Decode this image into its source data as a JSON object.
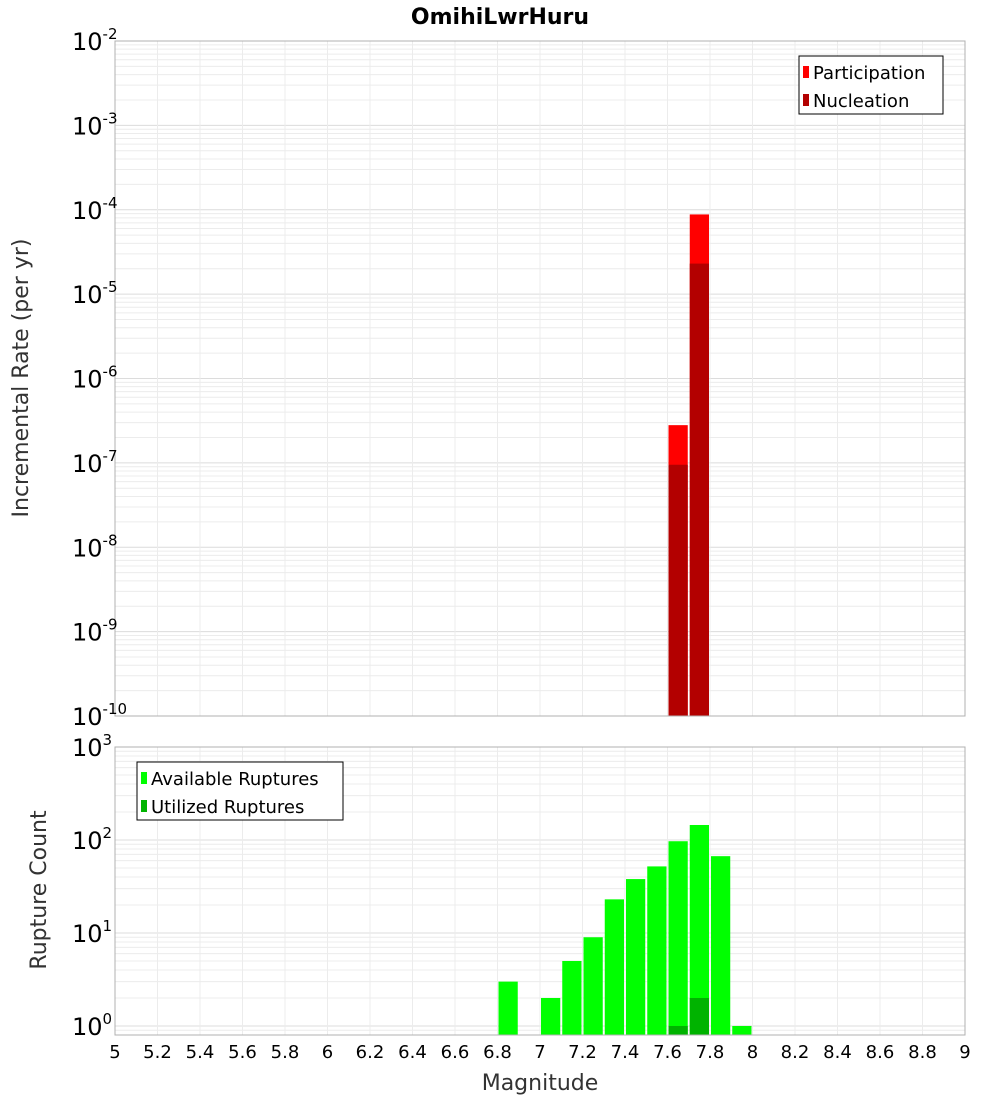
{
  "title": "OmihiLwrHuru",
  "chart_data": [
    {
      "type": "bar",
      "scale": "log",
      "ylabel": "Incremental Rate (per yr)",
      "ylim": [
        1e-10,
        0.01
      ],
      "yticks": [
        {
          "base": "10",
          "exp": "-10"
        },
        {
          "base": "10",
          "exp": "-9"
        },
        {
          "base": "10",
          "exp": "-8"
        },
        {
          "base": "10",
          "exp": "-7"
        },
        {
          "base": "10",
          "exp": "-6"
        },
        {
          "base": "10",
          "exp": "-5"
        },
        {
          "base": "10",
          "exp": "-4"
        },
        {
          "base": "10",
          "exp": "-3"
        },
        {
          "base": "10",
          "exp": "-2"
        }
      ],
      "legend_position": "top-right",
      "bin_width": 0.1,
      "series": [
        {
          "name": "Participation",
          "color": "#ff0000",
          "x": [
            7.65,
            7.75
          ],
          "values": [
            2.8e-07,
            8.8e-05
          ]
        },
        {
          "name": "Nucleation",
          "color": "#b30000",
          "x": [
            7.65,
            7.75
          ],
          "values": [
            9.5e-08,
            2.3e-05
          ]
        }
      ]
    },
    {
      "type": "bar",
      "scale": "log",
      "ylabel": "Rupture Count",
      "ylim": [
        0.8,
        1000
      ],
      "yticks": [
        {
          "base": "10",
          "exp": "0"
        },
        {
          "base": "10",
          "exp": "1"
        },
        {
          "base": "10",
          "exp": "2"
        },
        {
          "base": "10",
          "exp": "3"
        }
      ],
      "legend_position": "top-left",
      "bin_width": 0.1,
      "series": [
        {
          "name": "Available Ruptures",
          "color": "#00ff00",
          "x": [
            6.85,
            7.05,
            7.15,
            7.25,
            7.35,
            7.45,
            7.55,
            7.65,
            7.75,
            7.85,
            7.95
          ],
          "values": [
            3,
            2,
            5,
            9,
            23,
            38,
            52,
            97,
            145,
            67,
            1
          ]
        },
        {
          "name": "Utilized Ruptures",
          "color": "#00b300",
          "x": [
            7.65,
            7.75
          ],
          "values": [
            1,
            2
          ]
        }
      ]
    }
  ],
  "x_axis": {
    "label": "Magnitude",
    "xlim": [
      5,
      9
    ],
    "ticks": [
      "5",
      "5.2",
      "5.4",
      "5.6",
      "5.8",
      "6",
      "6.2",
      "6.4",
      "6.6",
      "6.8",
      "7",
      "7.2",
      "7.4",
      "7.6",
      "7.8",
      "8",
      "8.2",
      "8.4",
      "8.6",
      "8.8",
      "9"
    ],
    "tick_values": [
      5,
      5.2,
      5.4,
      5.6,
      5.8,
      6,
      6.2,
      6.4,
      6.6,
      6.8,
      7,
      7.2,
      7.4,
      7.6,
      7.8,
      8,
      8.2,
      8.4,
      8.6,
      8.8,
      9
    ]
  }
}
